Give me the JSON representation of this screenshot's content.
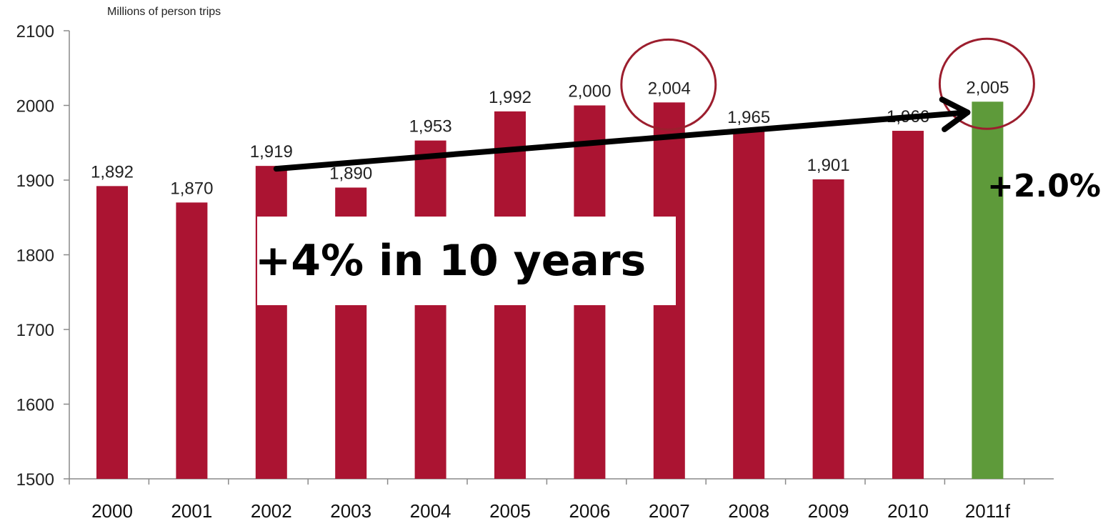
{
  "chart_data": {
    "type": "bar",
    "ylabel": "Millions of person trips",
    "categories": [
      "2000",
      "2001",
      "2002",
      "2003",
      "2004",
      "2005",
      "2006",
      "2007",
      "2008",
      "2009",
      "2010",
      "2011f"
    ],
    "values": [
      1892,
      1870,
      1919,
      1890,
      1953,
      1992,
      2000,
      2004,
      1965,
      1901,
      1966,
      2005
    ],
    "data_labels": [
      "1,892",
      "1,870",
      "1,919",
      "1,890",
      "1,953",
      "1,992",
      "2,000",
      "2,004",
      "1,965",
      "1,901",
      "1,966",
      "2,005"
    ],
    "yticks": [
      "1500",
      "1600",
      "1700",
      "1800",
      "1900",
      "2000",
      "2100"
    ],
    "ylim": [
      1500,
      2100
    ],
    "grid": false,
    "colors": {
      "bar": "#ab1432",
      "highlight": "#5e9a3a",
      "circle": "#9c1e2e",
      "arrow": "#000000"
    },
    "highlight_category": "2011f",
    "circled_categories": [
      "2007",
      "2011f"
    ],
    "annotations": {
      "growth_10y": "+4% in 10 years",
      "growth_2011": "+2.0%"
    },
    "arrow": {
      "from_category": "2002",
      "to_category": "2011f"
    }
  }
}
